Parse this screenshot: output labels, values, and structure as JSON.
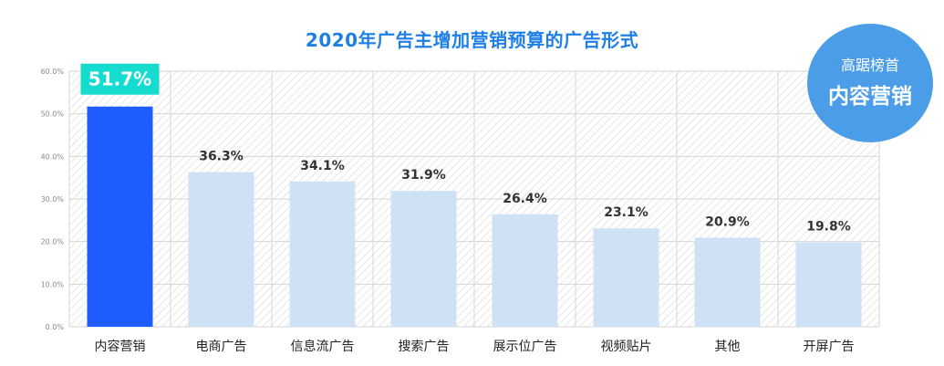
{
  "badge": {
    "line1": "高踞榜首",
    "line2": "内容营销"
  },
  "colors": {
    "highlight_bar": "#1f5cff",
    "bar": "#cfe2f5",
    "highlight_label_bg": "#16dcd0",
    "title": "#1e7fe6"
  },
  "chart_data": {
    "type": "bar",
    "title": "2020年广告主增加营销预算的广告形式",
    "xlabel": "",
    "ylabel": "",
    "categories": [
      "内容营销",
      "电商广告",
      "信息流广告",
      "搜索广告",
      "展示位广告",
      "视频贴片",
      "其他",
      "开屏广告"
    ],
    "values": [
      51.7,
      36.3,
      34.1,
      31.9,
      26.4,
      23.1,
      20.9,
      19.8
    ],
    "value_labels": [
      "51.7%",
      "36.3%",
      "34.1%",
      "31.9%",
      "26.4%",
      "23.1%",
      "20.9%",
      "19.8%"
    ],
    "highlight_index": 0,
    "ylim": [
      0,
      60
    ],
    "yticks": [
      0,
      10,
      20,
      30,
      40,
      50,
      60
    ],
    "ytick_labels": [
      "0.0%",
      "10.0%",
      "20.0%",
      "30.0%",
      "40.0%",
      "50.0%",
      "60.0%"
    ],
    "grid": true,
    "legend": "none"
  }
}
